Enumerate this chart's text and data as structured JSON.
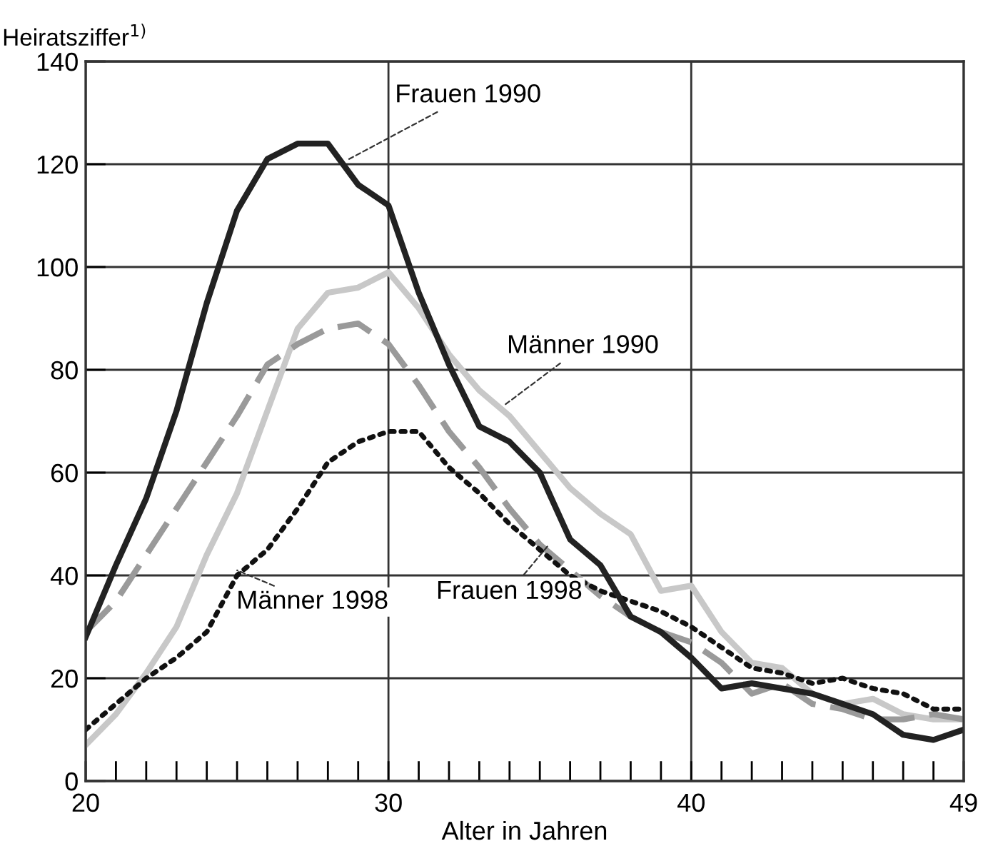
{
  "chart_data": {
    "type": "line",
    "ylabel": "Heiratsziffer$^{1)}$",
    "xlabel": "Alter in Jahren",
    "x": [
      20,
      21,
      22,
      23,
      24,
      25,
      26,
      27,
      28,
      29,
      30,
      31,
      32,
      33,
      34,
      35,
      36,
      37,
      38,
      39,
      40,
      41,
      42,
      43,
      44,
      45,
      46,
      47,
      48,
      49
    ],
    "xlim": [
      20,
      49
    ],
    "ylim": [
      0,
      140
    ],
    "xticks": [
      20,
      {
        "value": 21,
        "label": null
      },
      {
        "value": 22,
        "label": null
      },
      {
        "value": 23,
        "label": null
      },
      {
        "value": 24,
        "label": null
      },
      {
        "value": 25,
        "label": null
      },
      {
        "value": 26,
        "label": null
      },
      {
        "value": 27,
        "label": null
      },
      {
        "value": 28,
        "label": null
      },
      {
        "value": 29,
        "label": null
      },
      30,
      {
        "value": 31,
        "label": null
      },
      {
        "value": 32,
        "label": null
      },
      {
        "value": 33,
        "label": null
      },
      {
        "value": 34,
        "label": null
      },
      {
        "value": 35,
        "label": null
      },
      {
        "value": 36,
        "label": null
      },
      {
        "value": 37,
        "label": null
      },
      {
        "value": 38,
        "label": null
      },
      {
        "value": 39,
        "label": null
      },
      40,
      {
        "value": 41,
        "label": null
      },
      {
        "value": 42,
        "label": null
      },
      {
        "value": 43,
        "label": null
      },
      {
        "value": 44,
        "label": null
      },
      {
        "value": 45,
        "label": null
      },
      {
        "value": 46,
        "label": null
      },
      {
        "value": 47,
        "label": null
      },
      {
        "value": 48,
        "label": null
      },
      49
    ],
    "yticks": [
      0,
      20,
      40,
      60,
      80,
      100,
      120,
      140
    ],
    "grid": true,
    "legend": false,
    "marker": "none",
    "series": [
      {
        "color": "#c8c8c8",
        "line_style": "solid",
        "values": [
          7,
          13,
          21,
          30,
          44,
          56,
          72,
          88,
          95,
          96,
          99,
          92,
          83,
          76,
          71,
          64,
          57,
          52,
          48,
          37,
          38,
          29,
          23,
          22,
          17,
          15,
          16,
          13,
          12,
          12
        ]
      },
      {
        "color": "#9a9a9a",
        "line_style": "dashed",
        "values": [
          29,
          35,
          44,
          53,
          62,
          71,
          81,
          85,
          88,
          89,
          85,
          77,
          68,
          61,
          53,
          46,
          41,
          36,
          32,
          29,
          27,
          23,
          17,
          19,
          15,
          14,
          12,
          12,
          13,
          12
        ]
      },
      {
        "color": "#111111",
        "line_style": "dotted",
        "values": [
          10,
          15,
          20,
          24,
          29,
          40,
          45,
          53,
          62,
          66,
          68,
          68,
          61,
          56,
          50,
          45,
          40,
          37,
          35,
          33,
          30,
          26,
          22,
          21,
          19,
          20,
          18,
          17,
          14,
          14
        ]
      },
      {
        "color": "#222222",
        "line_style": "solid",
        "values": [
          28,
          42,
          55,
          72,
          93,
          111,
          121,
          124,
          124,
          116,
          112,
          95,
          81,
          69,
          66,
          60,
          47,
          42,
          32,
          29,
          24,
          18,
          19,
          18,
          17,
          15,
          13,
          9,
          8,
          10
        ]
      }
    ],
    "annotations": [
      {
        "text": "Frauen 1990",
        "x": 28.7,
        "y": 121
      },
      {
        "text": "Männer 1990",
        "x": 33.8,
        "y": 73
      },
      {
        "text": "Frauen 1998",
        "x": 35.3,
        "y": 46
      },
      {
        "text": "Männer 1998",
        "x": 25,
        "y": 41
      }
    ]
  }
}
